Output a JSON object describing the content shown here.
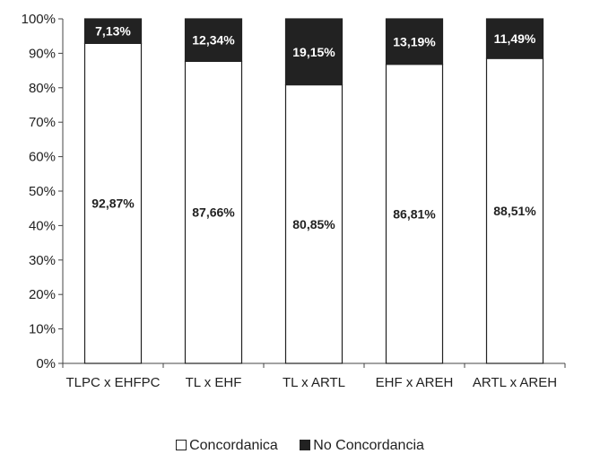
{
  "chart_data": {
    "type": "bar",
    "stacked": true,
    "percent": true,
    "categories": [
      "TLPC x EHFPC",
      "TL x EHF",
      "TL x ARTL",
      "EHF x AREH",
      "ARTL x AREH"
    ],
    "series": [
      {
        "name": "Concordanica",
        "color": "#ffffff",
        "values": [
          92.87,
          87.66,
          80.85,
          86.81,
          88.51
        ],
        "labels": [
          "92,87%",
          "87,66%",
          "80,85%",
          "86,81%",
          "88,51%"
        ]
      },
      {
        "name": "No Concordancia",
        "color": "#222222",
        "values": [
          7.13,
          12.34,
          19.15,
          13.19,
          11.49
        ],
        "labels": [
          "7,13%",
          "12,34%",
          "19,15%",
          "13,19%",
          "11,49%"
        ]
      }
    ],
    "yticks": [
      "0%",
      "10%",
      "20%",
      "30%",
      "40%",
      "50%",
      "60%",
      "70%",
      "80%",
      "90%",
      "100%"
    ],
    "ylim": [
      0,
      100
    ],
    "grid": false,
    "legend_position": "bottom"
  }
}
